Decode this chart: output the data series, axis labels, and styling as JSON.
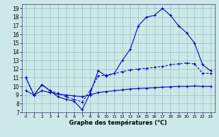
{
  "xlabel": "Graphe des températures (°C)",
  "background_color": "#cce8e8",
  "line_color": "#0000bb",
  "ylim": [
    7,
    19.5
  ],
  "xlim": [
    -0.5,
    23.5
  ],
  "yticks": [
    7,
    8,
    9,
    10,
    11,
    12,
    13,
    14,
    15,
    16,
    17,
    18,
    19
  ],
  "xticks": [
    0,
    1,
    2,
    3,
    4,
    5,
    6,
    7,
    8,
    9,
    10,
    11,
    12,
    13,
    14,
    15,
    16,
    17,
    18,
    19,
    20,
    21,
    22,
    23
  ],
  "series1_x": [
    0,
    1,
    2,
    3,
    4,
    5,
    6,
    7,
    8,
    9,
    10,
    11,
    12,
    13,
    14,
    15,
    16,
    17,
    18,
    19,
    20,
    21,
    22,
    23
  ],
  "series1_y": [
    11.0,
    9.0,
    10.2,
    9.5,
    8.8,
    8.5,
    8.3,
    7.3,
    9.2,
    11.8,
    11.2,
    11.5,
    13.0,
    14.3,
    17.0,
    18.0,
    18.2,
    19.0,
    18.2,
    17.0,
    16.2,
    15.0,
    12.5,
    11.8
  ],
  "series2_x": [
    0,
    1,
    2,
    3,
    4,
    5,
    6,
    7,
    8,
    9,
    10,
    11,
    12,
    13,
    14,
    15,
    16,
    17,
    18,
    19,
    20,
    21,
    22,
    23
  ],
  "series2_y": [
    11.0,
    9.0,
    10.2,
    9.5,
    9.2,
    8.8,
    8.5,
    8.2,
    9.5,
    11.2,
    11.3,
    11.5,
    11.7,
    11.9,
    12.0,
    12.1,
    12.2,
    12.3,
    12.5,
    12.6,
    12.7,
    12.6,
    11.5,
    11.5
  ],
  "series3_x": [
    0,
    1,
    2,
    3,
    4,
    5,
    6,
    7,
    8,
    9,
    10,
    11,
    12,
    13,
    14,
    15,
    16,
    17,
    18,
    19,
    20,
    21,
    22,
    23
  ],
  "series3_y": [
    9.5,
    9.0,
    9.5,
    9.3,
    9.1,
    9.0,
    8.9,
    8.8,
    9.0,
    9.3,
    9.4,
    9.5,
    9.6,
    9.7,
    9.75,
    9.8,
    9.85,
    9.9,
    9.95,
    10.0,
    10.0,
    10.05,
    10.0,
    10.0
  ]
}
